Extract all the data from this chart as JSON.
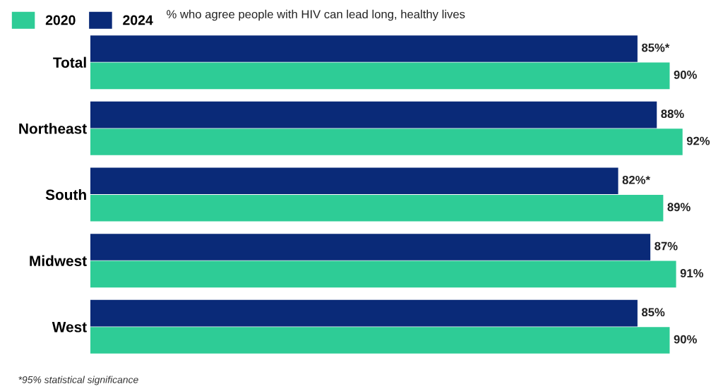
{
  "chart_data": {
    "type": "bar",
    "orientation": "horizontal",
    "title": "% who agree people with HIV can lead long, healthy lives",
    "categories": [
      "Total",
      "Northeast",
      "South",
      "Midwest",
      "West"
    ],
    "series": [
      {
        "name": "2024",
        "color": "#0a2a78",
        "values": [
          85,
          88,
          82,
          87,
          85
        ],
        "value_labels": [
          "85%*",
          "88%",
          "82%*",
          "87%",
          "85%"
        ]
      },
      {
        "name": "2020",
        "color": "#2ecc96",
        "values": [
          90,
          92,
          89,
          91,
          90
        ],
        "value_labels": [
          "90%",
          "92%",
          "89%",
          "91%",
          "90%"
        ]
      }
    ],
    "tick_labels": "y",
    "grid": false,
    "legend": "top left",
    "annotations": [
      "*95% statistical significance"
    ]
  }
}
